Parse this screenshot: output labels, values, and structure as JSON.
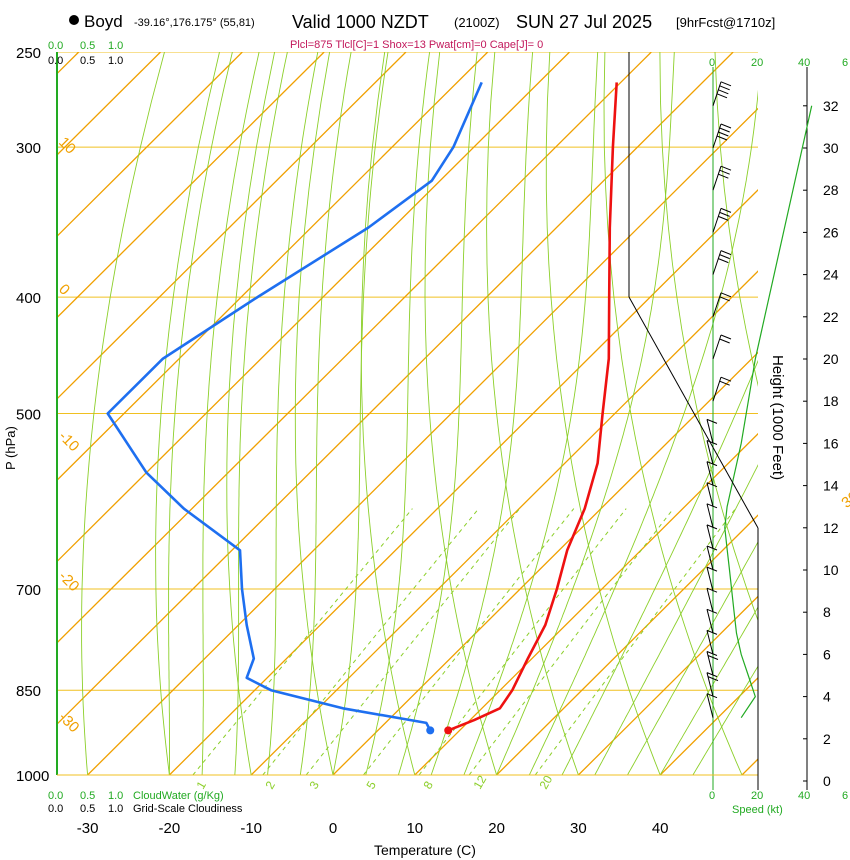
{
  "header": {
    "station": "Boyd",
    "coords": "-39.16°,176.175° (55,81)",
    "valid": "Valid 1000 NZDT",
    "zulu": "(2100Z)",
    "date": "SUN 27 Jul 2025",
    "forecast": "[9hrFcst@1710z]",
    "indices": "Plcl=875 Tlcl[C]=1 Shox=13 Pwat[cm]=0 Cape[J]= 0"
  },
  "colors": {
    "temperature": "#ee1111",
    "dewpoint": "#1e6ff0",
    "isotherm": "#f0a000",
    "dry_adiabat": "#8ccf2a",
    "moist_adiabat": "#8ccf2a",
    "mixing_ratio": "#8ccf2a",
    "isobar": "#f0c020",
    "cloud": "#22aa22",
    "wind": "#000000"
  },
  "chart_data": {
    "type": "skew-t",
    "title": "Boyd sounding, Valid 1000 NZDT SUN 27 Jul 2025",
    "xlabel": "Temperature (C)",
    "ylabel": "P (hPa)",
    "y2label": "Height (1000 Feet)",
    "xlim": [
      -34,
      46
    ],
    "ylim_hpa": [
      1000,
      250
    ],
    "x_ticks": [
      "-30",
      "-20",
      "-10",
      "0",
      "10",
      "20",
      "30",
      "40"
    ],
    "pressure_ticks": [
      "250",
      "300",
      "400",
      "500",
      "700",
      "850",
      "1000"
    ],
    "isobar_values": [
      250,
      300,
      400,
      500,
      700,
      850,
      1000
    ],
    "height_ticks_kft": [
      "0",
      "2",
      "4",
      "6",
      "8",
      "10",
      "12",
      "14",
      "16",
      "18",
      "20",
      "22",
      "24",
      "26",
      "28",
      "30",
      "32"
    ],
    "isotherm_labels": [
      "10",
      "0",
      "-10",
      "-20",
      "-30",
      "0",
      "10",
      "20",
      "30"
    ],
    "mixing_ratio_labels": [
      "1",
      "2",
      "3",
      "5",
      "8",
      "12",
      "20"
    ],
    "cloud_axis_labels": [
      "0.0",
      "0.5",
      "1.0"
    ],
    "cloud_bottom_water": "CloudWater (g/Kg)",
    "cloud_bottom_cover": "Grid-Scale Cloudiness",
    "speed_axis_labels": [
      "0",
      "20",
      "40",
      "6"
    ],
    "speed_label": "Speed (kt)",
    "temperature_profile": [
      {
        "p": 918,
        "t": 8.6
      },
      {
        "p": 900,
        "t": 10.5
      },
      {
        "p": 880,
        "t": 12.2
      },
      {
        "p": 850,
        "t": 11.5
      },
      {
        "p": 800,
        "t": 9.5
      },
      {
        "p": 750,
        "t": 7.5
      },
      {
        "p": 700,
        "t": 4.5
      },
      {
        "p": 650,
        "t": 1.0
      },
      {
        "p": 600,
        "t": -2.0
      },
      {
        "p": 550,
        "t": -6.0
      },
      {
        "p": 500,
        "t": -11.5
      },
      {
        "p": 450,
        "t": -17.5
      },
      {
        "p": 400,
        "t": -25.0
      },
      {
        "p": 350,
        "t": -33.5
      },
      {
        "p": 300,
        "t": -43.0
      },
      {
        "p": 265,
        "t": -50.5
      }
    ],
    "dewpoint_profile": [
      {
        "p": 918,
        "t": 6.4
      },
      {
        "p": 905,
        "t": 5.0
      },
      {
        "p": 880,
        "t": -7.0
      },
      {
        "p": 850,
        "t": -18.0
      },
      {
        "p": 830,
        "t": -22.5
      },
      {
        "p": 800,
        "t": -24.0
      },
      {
        "p": 750,
        "t": -29.0
      },
      {
        "p": 700,
        "t": -34.0
      },
      {
        "p": 650,
        "t": -39.0
      },
      {
        "p": 600,
        "t": -51.0
      },
      {
        "p": 560,
        "t": -60.0
      },
      {
        "p": 500,
        "t": -72.0
      },
      {
        "p": 450,
        "t": -72.0
      },
      {
        "p": 400,
        "t": -68.0
      },
      {
        "p": 350,
        "t": -63.0
      },
      {
        "p": 320,
        "t": -61.0
      },
      {
        "p": 300,
        "t": -62.5
      },
      {
        "p": 265,
        "t": -67.0
      }
    ],
    "wind_profile_kt": [
      {
        "h": 3,
        "spd": 12
      },
      {
        "h": 4,
        "spd": 18
      },
      {
        "h": 5,
        "spd": 15
      },
      {
        "h": 6,
        "spd": 12
      },
      {
        "h": 7,
        "spd": 10
      },
      {
        "h": 8,
        "spd": 9
      },
      {
        "h": 9,
        "spd": 8
      },
      {
        "h": 10,
        "spd": 7
      },
      {
        "h": 11,
        "spd": 6
      },
      {
        "h": 12,
        "spd": 5
      },
      {
        "h": 13,
        "spd": 6
      },
      {
        "h": 14,
        "spd": 8
      },
      {
        "h": 15,
        "spd": 10
      },
      {
        "h": 16,
        "spd": 12
      },
      {
        "h": 18,
        "spd": 15
      },
      {
        "h": 20,
        "spd": 18
      },
      {
        "h": 22,
        "spd": 22
      },
      {
        "h": 24,
        "spd": 26
      },
      {
        "h": 26,
        "spd": 30
      },
      {
        "h": 28,
        "spd": 34
      },
      {
        "h": 30,
        "spd": 38
      },
      {
        "h": 32,
        "spd": 42
      }
    ],
    "parcel_surface_markers": {
      "temperature": 8.6,
      "dewpoint": 6.4,
      "p": 918
    }
  }
}
